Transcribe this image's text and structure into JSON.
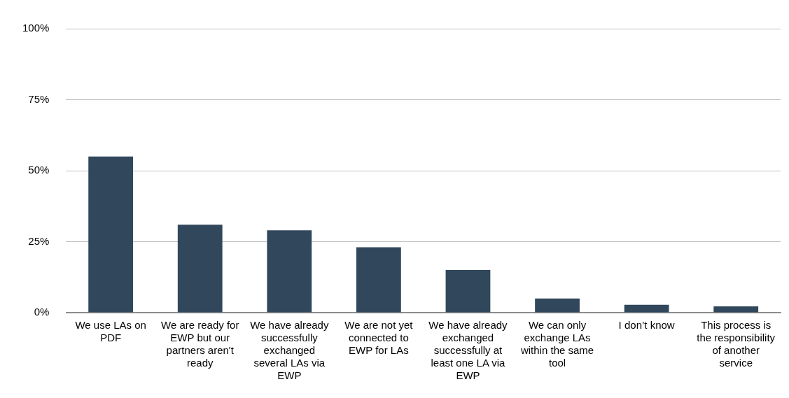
{
  "chart_data": {
    "type": "bar",
    "categories": [
      "We use LAs on PDF",
      "We are ready for EWP but our partners aren't ready",
      "We have already successfully exchanged several LAs via EWP",
      "We are not yet connected to EWP for LAs",
      "We have already exchanged successfully at least one LA via EWP",
      "We can only exchange LAs within the same tool",
      "I don’t know",
      "This process is the responsibility of another service"
    ],
    "values": [
      55,
      31,
      29,
      23,
      15,
      5,
      2.8,
      2.2
    ],
    "color": "#31475c",
    "ylim": [
      0,
      100
    ],
    "yticks": [
      {
        "value": 0,
        "label": "0%"
      },
      {
        "value": 25,
        "label": "25%"
      },
      {
        "value": 50,
        "label": "50%"
      },
      {
        "value": 75,
        "label": "75%"
      },
      {
        "value": 100,
        "label": "100%"
      }
    ],
    "grid": "y",
    "legend": false
  }
}
